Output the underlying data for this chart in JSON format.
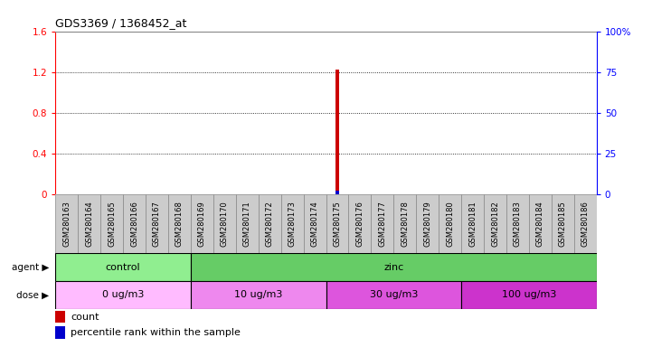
{
  "title": "GDS3369 / 1368452_at",
  "samples": [
    "GSM280163",
    "GSM280164",
    "GSM280165",
    "GSM280166",
    "GSM280167",
    "GSM280168",
    "GSM280169",
    "GSM280170",
    "GSM280171",
    "GSM280172",
    "GSM280173",
    "GSM280174",
    "GSM280175",
    "GSM280176",
    "GSM280177",
    "GSM280178",
    "GSM280179",
    "GSM280180",
    "GSM280181",
    "GSM280182",
    "GSM280183",
    "GSM280184",
    "GSM280185",
    "GSM280186"
  ],
  "count_values": [
    0,
    0,
    0,
    0,
    0,
    0,
    0,
    0,
    0,
    0,
    0,
    0,
    1.22,
    0,
    0,
    0,
    0,
    0,
    0,
    0,
    0,
    0,
    0,
    0
  ],
  "percentile_values": [
    0,
    0,
    0,
    0,
    0,
    0,
    0,
    0,
    0,
    0,
    0,
    0,
    2,
    0,
    0,
    0,
    0,
    0,
    0,
    0,
    0,
    0,
    0,
    0
  ],
  "count_color": "#cc0000",
  "percentile_color": "#0000cc",
  "ylim_left": [
    0,
    1.6
  ],
  "ylim_right": [
    0,
    100
  ],
  "yticks_left": [
    0,
    0.4,
    0.8,
    1.2,
    1.6
  ],
  "yticks_right": [
    0,
    25,
    50,
    75,
    100
  ],
  "ytick_labels_left": [
    "0",
    "0.4",
    "0.8",
    "1.2",
    "1.6"
  ],
  "ytick_labels_right": [
    "0",
    "25",
    "50",
    "75",
    "100%"
  ],
  "agent_groups": [
    {
      "label": "control",
      "start": 0,
      "end": 6,
      "color": "#90ee90"
    },
    {
      "label": "zinc",
      "start": 6,
      "end": 24,
      "color": "#66cc66"
    }
  ],
  "dose_groups": [
    {
      "label": "0 ug/m3",
      "start": 0,
      "end": 6,
      "color": "#ffbbff"
    },
    {
      "label": "10 ug/m3",
      "start": 6,
      "end": 12,
      "color": "#ee88ee"
    },
    {
      "label": "30 ug/m3",
      "start": 12,
      "end": 18,
      "color": "#dd55dd"
    },
    {
      "label": "100 ug/m3",
      "start": 18,
      "end": 24,
      "color": "#cc33cc"
    }
  ],
  "agent_label": "agent",
  "dose_label": "dose",
  "legend_count": "count",
  "legend_percentile": "percentile rank within the sample",
  "bar_width": 0.15,
  "tick_label_fontsize": 6.0,
  "title_fontsize": 9,
  "plot_bg_color": "#ffffff",
  "sample_label_bg": "#cccccc",
  "divider_color": "#aaaaaa"
}
